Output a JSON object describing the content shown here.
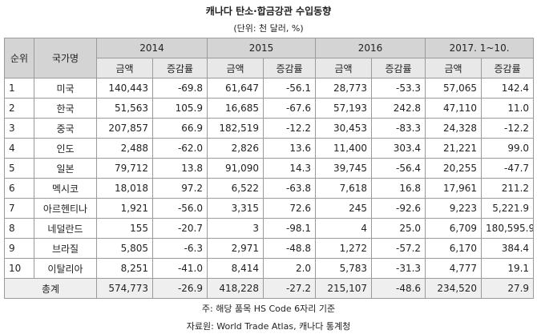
{
  "header": {
    "title": "캐나다 탄소·합금강관 수입동향",
    "subtitle": "(단위: 천 달러, %)"
  },
  "table": {
    "rank_header": "순위",
    "name_header": "국가명",
    "periods": [
      "2014",
      "2015",
      "2016",
      "2017. 1~10."
    ],
    "subheaders": [
      "금액",
      "증감률"
    ],
    "rows": [
      [
        "1",
        "미국",
        "140,443",
        "-69.8",
        "61,647",
        "-56.1",
        "28,773",
        "-53.3",
        "57,065",
        "142.4"
      ],
      [
        "2",
        "한국",
        "51,563",
        "105.9",
        "16,685",
        "-67.6",
        "57,193",
        "242.8",
        "47,110",
        "11.0"
      ],
      [
        "3",
        "중국",
        "207,857",
        "66.9",
        "182,519",
        "-12.2",
        "30,453",
        "-83.3",
        "24,328",
        "-12.2"
      ],
      [
        "4",
        "인도",
        "2,488",
        "-62.0",
        "2,826",
        "13.6",
        "11,400",
        "303.4",
        "21,221",
        "99.0"
      ],
      [
        "5",
        "일본",
        "79,712",
        "13.8",
        "91,090",
        "14.3",
        "39,745",
        "-56.4",
        "20,255",
        "-47.7"
      ],
      [
        "6",
        "멕시코",
        "18,018",
        "97.2",
        "6,522",
        "-63.8",
        "7,618",
        "16.8",
        "17,961",
        "211.2"
      ],
      [
        "7",
        "아르헨티나",
        "1,921",
        "-56.0",
        "3,315",
        "72.6",
        "245",
        "-92.6",
        "9,223",
        "5,221.9"
      ],
      [
        "8",
        "네덜란드",
        "155",
        "-20.7",
        "3",
        "-98.1",
        "4",
        "25.0",
        "6,709",
        "180,595.9"
      ],
      [
        "9",
        "브라질",
        "5,805",
        "-6.3",
        "2,971",
        "-48.8",
        "1,272",
        "-57.2",
        "6,170",
        "384.4"
      ],
      [
        "10",
        "이탈리아",
        "8,251",
        "-41.0",
        "8,414",
        "2.0",
        "5,783",
        "-31.3",
        "4,777",
        "19.1"
      ]
    ],
    "total": {
      "label": "총계",
      "values": [
        "574,773",
        "-26.9",
        "418,228",
        "-27.2",
        "215,107",
        "-48.6",
        "234,520",
        "27.9"
      ]
    }
  },
  "footer": {
    "note": "주: 해당 품목 HS Code 6자리 기준",
    "source": "자료원: World Trade Atlas, 캐나다 통계청"
  }
}
